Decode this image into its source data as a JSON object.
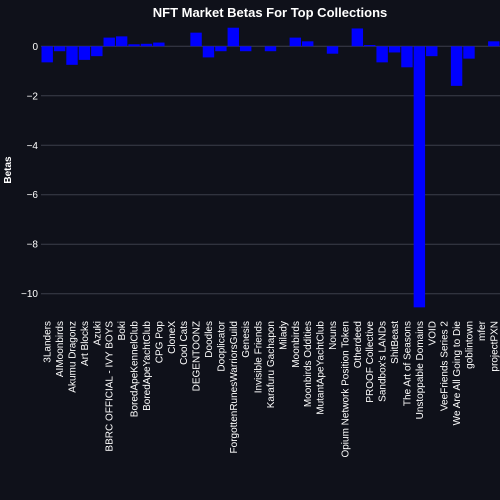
{
  "chart_data": {
    "type": "bar",
    "title": "NFT Market Betas For Top Collections",
    "xlabel": "",
    "ylabel": "Betas",
    "ylim": [
      -10.9,
      0.9
    ],
    "yticks": [
      -10,
      -8,
      -6,
      -4,
      -2,
      0
    ],
    "grid": true,
    "colors": {
      "background": "#0f111a",
      "bar": "#0000ff",
      "grid": "#3c3f4a",
      "text": "#ffffff"
    },
    "categories": [
      "3Landers",
      "AIMoonbirds",
      "Akumu Dragonz",
      "Art Blocks",
      "Azuki",
      "BBRC OFFICIAL - IVY BOYS",
      "Boki",
      "BoredApeKennelClub",
      "BoredApeYachtClub",
      "CPG Pop",
      "CloneX",
      "Cool Cats",
      "DEGENTOONZ",
      "Doodles",
      "Dooplicator",
      "ForgottenRunesWarriorsGuild",
      "Genesis",
      "Invisible Friends",
      "Karafuru Gachapon",
      "Milady",
      "Moonbirds",
      "Moonbirds Oddities",
      "MutantApeYachtClub",
      "Nouns",
      "Opium Network Position Token",
      "Otherdeed",
      "PROOF Collective",
      "Sandbox's LANDs",
      "ShitBeast",
      "The Art of Seasons",
      "Unstoppable Domains",
      "VOID",
      "VeeFriends Series 2",
      "We Are All Going to Die",
      "goblintown",
      "mfer",
      "projectPXN"
    ],
    "values": [
      -0.65,
      -0.2,
      -0.75,
      -0.55,
      -0.4,
      0.35,
      0.4,
      0.08,
      0.1,
      0.15,
      0.0,
      0.0,
      0.55,
      -0.45,
      -0.2,
      0.75,
      -0.2,
      0.0,
      -0.2,
      0.0,
      0.35,
      0.2,
      0.0,
      -0.3,
      0.0,
      0.72,
      0.05,
      -0.65,
      -0.25,
      -0.85,
      -10.55,
      -0.4,
      0.0,
      -1.6,
      -0.5,
      0.0,
      0.2
    ]
  }
}
